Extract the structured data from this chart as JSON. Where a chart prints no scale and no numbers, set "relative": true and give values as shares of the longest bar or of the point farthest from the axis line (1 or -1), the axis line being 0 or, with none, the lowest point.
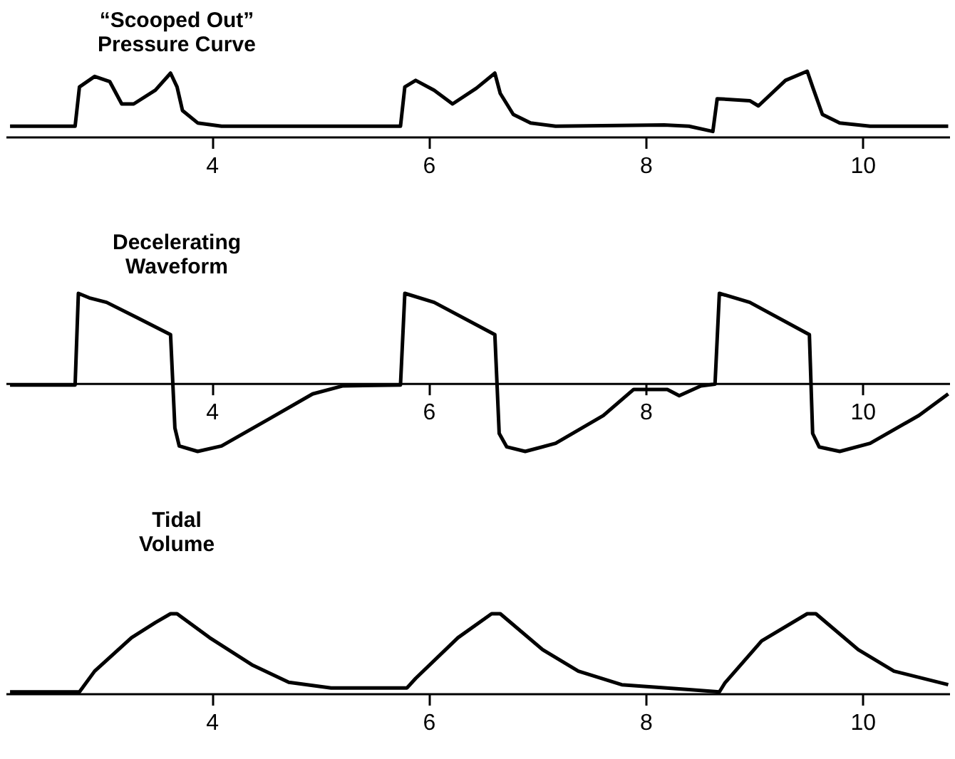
{
  "chart_data": [
    {
      "type": "line",
      "title": "“Scooped Out”\nPressure Curve",
      "relative": true,
      "xlim": [
        2.1,
        10.8
      ],
      "xticks": [
        4,
        6,
        8,
        10
      ],
      "x": [
        2.14,
        2.74,
        2.78,
        2.92,
        3.06,
        3.17,
        3.28,
        3.48,
        3.62,
        3.68,
        3.73,
        3.87,
        4.09,
        5.74,
        5.78,
        5.88,
        6.05,
        6.22,
        6.44,
        6.61,
        6.66,
        6.78,
        6.94,
        7.17,
        8.17,
        8.4,
        8.62,
        8.66,
        8.96,
        9.04,
        9.29,
        9.49,
        9.54,
        9.63,
        9.79,
        10.07,
        10.79
      ],
      "series": [
        {
          "color": "#000000",
          "values": [
            0.16,
            0.16,
            0.76,
            0.92,
            0.84,
            0.5,
            0.5,
            0.71,
            0.97,
            0.76,
            0.4,
            0.21,
            0.16,
            0.16,
            0.76,
            0.86,
            0.71,
            0.5,
            0.74,
            0.97,
            0.66,
            0.34,
            0.21,
            0.16,
            0.18,
            0.16,
            0.08,
            0.58,
            0.55,
            0.47,
            0.86,
            1,
            0.76,
            0.34,
            0.21,
            0.16,
            0.16
          ]
        }
      ]
    },
    {
      "type": "line",
      "title": "Decelerating\nWaveform",
      "relative": true,
      "xlim": [
        2.1,
        10.8
      ],
      "xticks": [
        4,
        6,
        8,
        10
      ],
      "x": [
        2.14,
        2.74,
        2.77,
        2.87,
        3.03,
        3.31,
        3.62,
        3.66,
        3.7,
        3.87,
        4.09,
        4.54,
        4.93,
        5.21,
        5.74,
        5.78,
        6.05,
        6.61,
        6.65,
        6.72,
        6.89,
        7.17,
        7.61,
        7.89,
        8.2,
        8.31,
        8.51,
        8.64,
        8.68,
        8.96,
        9.51,
        9.54,
        9.6,
        9.79,
        10.07,
        10.52,
        10.79
      ],
      "series": [
        {
          "color": "#000000",
          "values": [
            -0.02,
            -0.02,
            1,
            0.95,
            0.9,
            0.73,
            0.54,
            -0.5,
            -0.7,
            -0.76,
            -0.7,
            -0.39,
            -0.12,
            -0.03,
            -0.02,
            1,
            0.9,
            0.54,
            -0.56,
            -0.71,
            -0.76,
            -0.67,
            -0.36,
            -0.07,
            -0.07,
            -0.14,
            -0.03,
            -0.01,
            1,
            0.9,
            0.54,
            -0.56,
            -0.71,
            -0.76,
            -0.67,
            -0.36,
            -0.12
          ]
        }
      ]
    },
    {
      "type": "line",
      "title": "Tidal\nVolume",
      "relative": true,
      "xlim": [
        2.1,
        10.8
      ],
      "xticks": [
        4,
        6,
        8,
        10
      ],
      "x": [
        2.14,
        2.78,
        2.92,
        3.26,
        3.48,
        3.62,
        3.68,
        3.98,
        4.37,
        4.71,
        5.1,
        5.8,
        5.88,
        6.27,
        6.58,
        6.66,
        7.05,
        7.38,
        7.78,
        8.4,
        8.68,
        8.73,
        9.07,
        9.49,
        9.57,
        9.96,
        10.29,
        10.79
      ],
      "series": [
        {
          "color": "#000000",
          "values": [
            0.02,
            0.02,
            0.28,
            0.7,
            0.89,
            1,
            1,
            0.7,
            0.36,
            0.14,
            0.07,
            0.07,
            0.19,
            0.7,
            1,
            1,
            0.55,
            0.28,
            0.11,
            0.05,
            0.02,
            0.13,
            0.66,
            1,
            1,
            0.55,
            0.28,
            0.11
          ]
        }
      ]
    }
  ]
}
